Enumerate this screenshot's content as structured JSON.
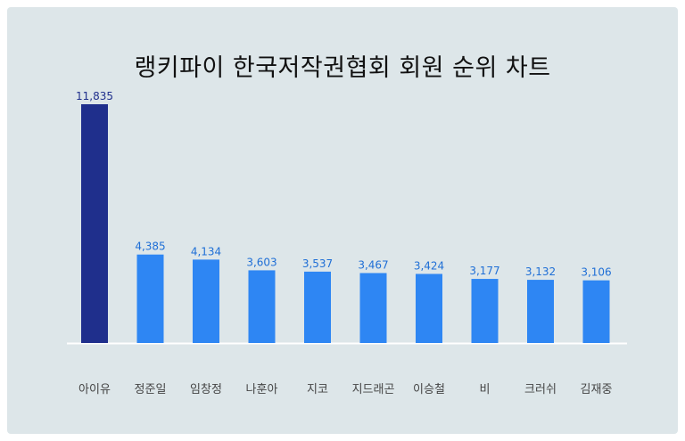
{
  "chart_data": {
    "type": "bar",
    "title": "랭키파이 한국저작권협회 회원 순위 차트",
    "categories": [
      "아이유",
      "정준일",
      "임창정",
      "나훈아",
      "지코",
      "지드래곤",
      "이승철",
      "비",
      "크러쉬",
      "김재중"
    ],
    "values": [
      11835,
      4385,
      4134,
      3603,
      3537,
      3467,
      3424,
      3177,
      3132,
      3106
    ],
    "value_labels": [
      "11,835",
      "4,385",
      "4,134",
      "3,603",
      "3,537",
      "3,467",
      "3,424",
      "3,177",
      "3,132",
      "3,106"
    ],
    "xlabel": "",
    "ylabel": "",
    "ylim": [
      0,
      11835
    ],
    "grid": false,
    "legend": "none",
    "colors": {
      "highlight_bar": "#1f2f8c",
      "bar": "#2e86f3",
      "highlight_label": "#1f2f8c",
      "label": "#1f6fd6",
      "category_label": "#444444",
      "baseline": "#ffffff",
      "background": "#dde6e9"
    }
  }
}
